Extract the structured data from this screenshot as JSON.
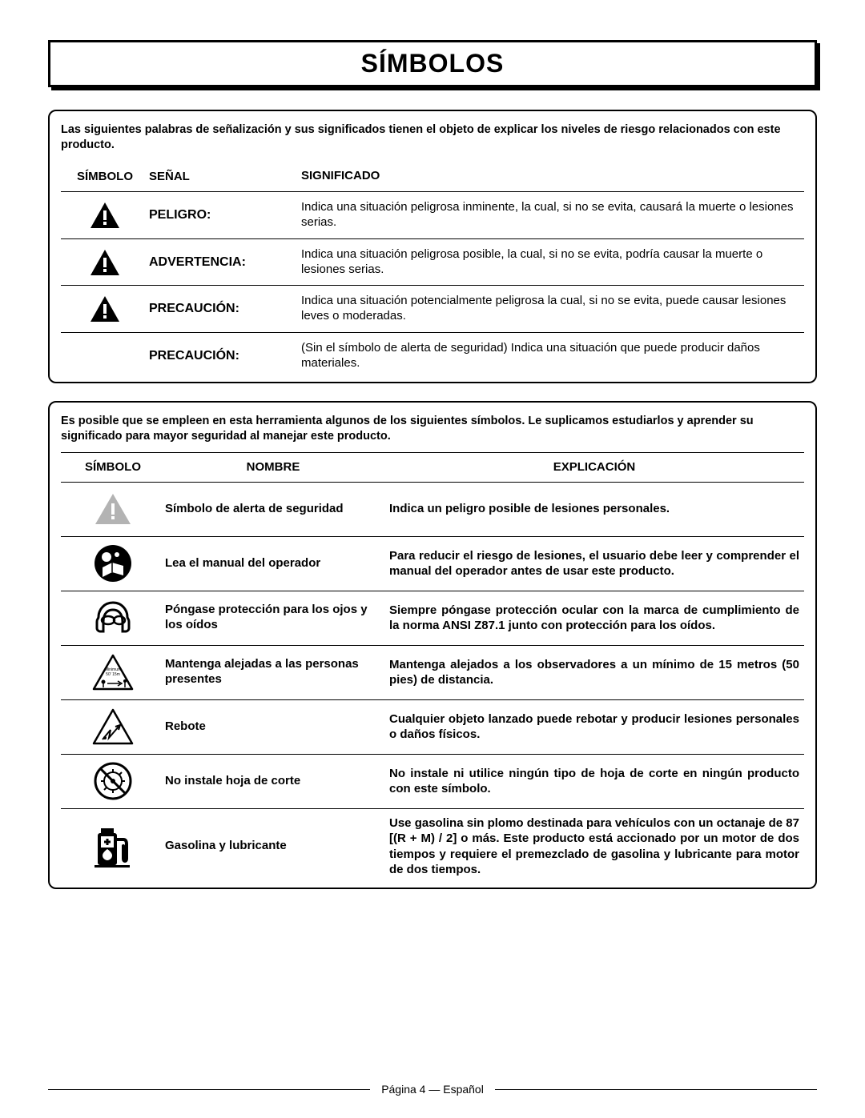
{
  "title": "SÍMBOLOS",
  "table1": {
    "intro": "Las siguientes palabras de señalización y sus significados tienen el objeto de explicar los niveles de riesgo relacionados con este producto.",
    "headers": {
      "symbol": "SÍMBOLO",
      "signal": "SEÑAL",
      "meaning": "SIGNIFICADO"
    },
    "rows": [
      {
        "hasIcon": true,
        "signal": "PELIGRO:",
        "meaning": "Indica una situación peligrosa inminente, la cual, si no se evita, causará la muerte o lesiones serias."
      },
      {
        "hasIcon": true,
        "signal": "ADVERTENCIA:",
        "meaning": "Indica una situación peligrosa posible, la cual, si no se evita, podría causar la muerte o lesiones serias."
      },
      {
        "hasIcon": true,
        "signal": "PRECAUCIÓN:",
        "meaning": "Indica una situación potencialmente peligrosa la cual, si no se evita, puede causar lesiones leves o moderadas."
      },
      {
        "hasIcon": false,
        "signal": "PRECAUCIÓN:",
        "meaning": "(Sin el símbolo de alerta de seguridad) Indica una situación que puede producir daños materiales."
      }
    ]
  },
  "table2": {
    "intro": "Es posible que se empleen en esta herramienta algunos de los siguientes símbolos. Le suplicamos estudiarlos y aprender su significado para mayor seguridad al manejar este producto.",
    "headers": {
      "symbol": "SÍMBOLO",
      "name": "NOMBRE",
      "explanation": "EXPLICACIÓN"
    },
    "rows": [
      {
        "icon": "alert-grey",
        "name": "Símbolo de alerta de seguridad",
        "expl": "Indica un peligro posible de lesiones personales."
      },
      {
        "icon": "read-manual",
        "name": "Lea el manual del operador",
        "expl": "Para reducir el riesgo de lesiones, el usuario debe leer y comprender el manual del operador antes de usar este producto."
      },
      {
        "icon": "eye-ear",
        "name": "Póngase protección para los ojos y los oídos",
        "expl": "Siempre póngase protección ocular con la marca de cumplimiento de la norma ANSI Z87.1 junto con protección para los oídos."
      },
      {
        "icon": "bystander",
        "name": "Mantenga alejadas a las personas presentes",
        "expl": "Mantenga alejados a los observadores a un mínimo de 15 metros (50 pies) de distancia."
      },
      {
        "icon": "ricochet",
        "name": "Rebote",
        "expl": "Cualquier objeto lanzado puede rebotar y producir lesiones personales o daños físicos."
      },
      {
        "icon": "no-blade",
        "name": "No instale hoja de corte",
        "expl": "No instale ni utilice ningún tipo de hoja de corte en ningún producto con este símbolo."
      },
      {
        "icon": "fuel",
        "name": "Gasolina y lubricante",
        "expl": "Use gasolina sin plomo destinada para vehículos con un octanaje de 87 [(R + M) / 2] o más. Este producto está accionado por un motor de dos tiempos y requiere el premezclado de gasolina y lubricante para motor de dos tiempos."
      }
    ]
  },
  "footer": "Página 4  — Español"
}
